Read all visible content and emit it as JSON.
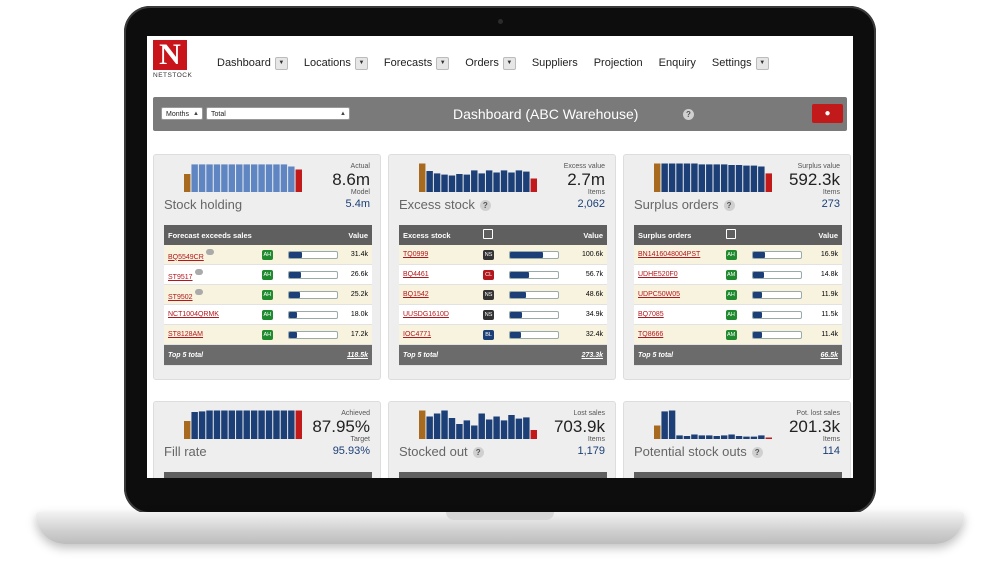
{
  "brand": {
    "name": "NETSTOCK",
    "initial": "N"
  },
  "nav": [
    {
      "label": "Dashboard",
      "caret": true
    },
    {
      "label": "Locations",
      "caret": true
    },
    {
      "label": "Forecasts",
      "caret": true
    },
    {
      "label": "Orders",
      "caret": true
    },
    {
      "label": "Suppliers",
      "caret": false
    },
    {
      "label": "Projection",
      "caret": false
    },
    {
      "label": "Enquiry",
      "caret": false
    },
    {
      "label": "Settings",
      "caret": true
    }
  ],
  "toolbar": {
    "period_select": "Months",
    "scope_select": "Total",
    "title": "Dashboard (ABC Warehouse)",
    "help": "?"
  },
  "colors": {
    "accent": "#c21a1a",
    "navy": "#1b3f76",
    "bar_blue": "#5f86c2",
    "bar_gold": "#a86a1e",
    "bar_red": "#c21a1a"
  },
  "cards": {
    "stock_holding": {
      "name": "Stock holding",
      "label1": "Actual",
      "value1": "8.6m",
      "label2": "Model",
      "value2": "5.4m",
      "bars": [
        0.6,
        0.92,
        0.92,
        0.92,
        0.92,
        0.92,
        0.92,
        0.92,
        0.92,
        0.92,
        0.92,
        0.92,
        0.92,
        0.92,
        0.85,
        0.75
      ]
    },
    "excess_stock": {
      "name": "Excess stock",
      "label1": "Excess value",
      "value1": "2.7m",
      "label2": "Items",
      "value2": "2,062",
      "bars": [
        0.95,
        0.7,
        0.62,
        0.58,
        0.55,
        0.6,
        0.58,
        0.72,
        0.62,
        0.72,
        0.65,
        0.72,
        0.65,
        0.72,
        0.68,
        0.45
      ]
    },
    "surplus_orders": {
      "name": "Surplus orders",
      "label1": "Surplus value",
      "value1": "592.3k",
      "label2": "Items",
      "value2": "273",
      "bars": [
        0.95,
        0.95,
        0.95,
        0.95,
        0.95,
        0.95,
        0.92,
        0.92,
        0.92,
        0.92,
        0.9,
        0.9,
        0.88,
        0.88,
        0.85,
        0.62
      ]
    },
    "fill_rate": {
      "name": "Fill rate",
      "label1": "Achieved",
      "value1": "87.95%",
      "label2": "Target",
      "value2": "95.93%",
      "bars": [
        0.6,
        0.9,
        0.92,
        0.95,
        0.95,
        0.95,
        0.95,
        0.95,
        0.95,
        0.95,
        0.95,
        0.95,
        0.95,
        0.95,
        0.95,
        0.95
      ]
    },
    "stocked_out": {
      "name": "Stocked out",
      "label1": "Lost sales",
      "value1": "703.9k",
      "label2": "Items",
      "value2": "1,179",
      "bars": [
        0.95,
        0.75,
        0.85,
        0.95,
        0.7,
        0.5,
        0.62,
        0.45,
        0.85,
        0.65,
        0.75,
        0.62,
        0.8,
        0.68,
        0.72,
        0.3
      ]
    },
    "potential_stock_outs": {
      "name": "Potential stock outs",
      "label1": "Pot. lost sales",
      "value1": "201.3k",
      "label2": "Items",
      "value2": "114",
      "bars": [
        0.45,
        0.92,
        0.95,
        0.12,
        0.1,
        0.15,
        0.12,
        0.12,
        0.1,
        0.12,
        0.15,
        0.1,
        0.08,
        0.08,
        0.12,
        0.05
      ]
    }
  },
  "tables": {
    "forecast": {
      "header": "Forecast exceeds sales",
      "value_header": "Value",
      "rows": [
        {
          "code": "BQ5549CR",
          "badge": "AH",
          "badge_color": "#1f8a2e",
          "bar": 0.28,
          "value": "31.4k",
          "comment": true
        },
        {
          "code": "ST9517",
          "badge": "AH",
          "badge_color": "#1f8a2e",
          "bar": 0.24,
          "value": "26.6k",
          "comment": true
        },
        {
          "code": "ST9502",
          "badge": "AH",
          "badge_color": "#1f8a2e",
          "bar": 0.22,
          "value": "25.2k",
          "comment": true
        },
        {
          "code": "NCT1004QRMK",
          "badge": "AH",
          "badge_color": "#1f8a2e",
          "bar": 0.17,
          "value": "18.0k",
          "comment": false
        },
        {
          "code": "ST8128AM",
          "badge": "AH",
          "badge_color": "#1f8a2e",
          "bar": 0.16,
          "value": "17.2k",
          "comment": false
        }
      ],
      "footer_label": "Top 5 total",
      "footer_value": "118.5k"
    },
    "excess": {
      "header": "Excess stock",
      "value_header": "Value",
      "rows": [
        {
          "code": "TQ0999",
          "badge": "NS",
          "badge_color": "#333333",
          "bar": 0.68,
          "value": "100.6k"
        },
        {
          "code": "BQ4461",
          "badge": "CL",
          "badge_color": "#b3171c",
          "bar": 0.4,
          "value": "56.7k"
        },
        {
          "code": "BQ1542",
          "badge": "NS",
          "badge_color": "#333333",
          "bar": 0.34,
          "value": "48.6k"
        },
        {
          "code": "UUSDG1610D",
          "badge": "NS",
          "badge_color": "#333333",
          "bar": 0.25,
          "value": "34.9k"
        },
        {
          "code": "IOC4771",
          "badge": "BL",
          "badge_color": "#1b3f76",
          "bar": 0.23,
          "value": "32.4k"
        }
      ],
      "footer_label": "Top 5 total",
      "footer_value": "273.3k"
    },
    "surplus": {
      "header": "Surplus orders",
      "value_header": "Value",
      "rows": [
        {
          "code": "BN1416048004PST",
          "badge": "AH",
          "badge_color": "#1f8a2e",
          "bar": 0.26,
          "value": "16.9k"
        },
        {
          "code": "UDHE520F0",
          "badge": "AM",
          "badge_color": "#1f8a2e",
          "bar": 0.23,
          "value": "14.8k"
        },
        {
          "code": "UDPC50W05",
          "badge": "AH",
          "badge_color": "#1f8a2e",
          "bar": 0.19,
          "value": "11.9k"
        },
        {
          "code": "BQ7085",
          "badge": "AH",
          "badge_color": "#1f8a2e",
          "bar": 0.18,
          "value": "11.5k"
        },
        {
          "code": "TQ8666",
          "badge": "AM",
          "badge_color": "#1f8a2e",
          "bar": 0.18,
          "value": "11.4k"
        }
      ],
      "footer_label": "Top 5 total",
      "footer_value": "66.5k"
    }
  }
}
